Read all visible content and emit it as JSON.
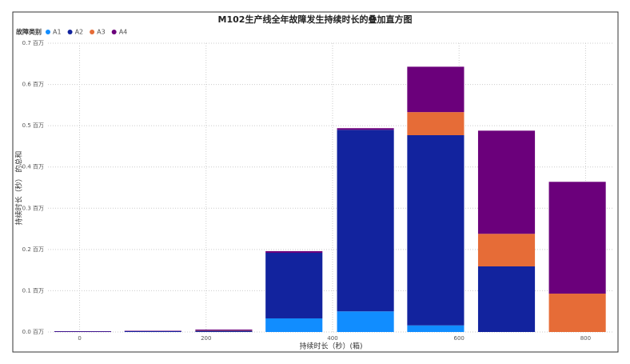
{
  "chart_data": {
    "type": "stacked_bar",
    "title": "M102生产线全年故障发生持续时长的叠加直方图",
    "legend_title": "故障类别",
    "x_label": "持续时长（秒）(箱)",
    "y_label": "持续时长（秒） 的总和",
    "x": [
      5,
      116,
      228,
      339,
      452,
      563,
      675,
      787
    ],
    "series": [
      {
        "name": "A1",
        "color": "#118DFF",
        "values": [
          0,
          0,
          0,
          0.033,
          0.05,
          0.016,
          0,
          0
        ]
      },
      {
        "name": "A2",
        "color": "#12239E",
        "values": [
          0.001,
          0.002,
          0.003,
          0.159,
          0.44,
          0.461,
          0.159,
          0
        ]
      },
      {
        "name": "A3",
        "color": "#E66C37",
        "values": [
          0,
          0,
          0.001,
          0,
          0,
          0.056,
          0.079,
          0.093
        ]
      },
      {
        "name": "A4",
        "color": "#6B007B",
        "values": [
          0.001,
          0.001,
          0.002,
          0.004,
          0.004,
          0.11,
          0.25,
          0.271
        ]
      }
    ],
    "xlim": [
      -50,
      845
    ],
    "xticks": [
      0,
      200,
      400,
      600,
      800
    ],
    "ylim": [
      0,
      0.7
    ],
    "yticks": [
      {
        "value": 0,
        "label": "0.0 百万"
      },
      {
        "value": 0.1,
        "label": "0.1 百万"
      },
      {
        "value": 0.2,
        "label": "0.2 百万"
      },
      {
        "value": 0.3,
        "label": "0.3 百万"
      },
      {
        "value": 0.4,
        "label": "0.4 百万"
      },
      {
        "value": 0.5,
        "label": "0.5 百万"
      },
      {
        "value": 0.6,
        "label": "0.6 百万"
      },
      {
        "value": 0.7,
        "label": "0.7 百万"
      }
    ],
    "grid": true
  }
}
